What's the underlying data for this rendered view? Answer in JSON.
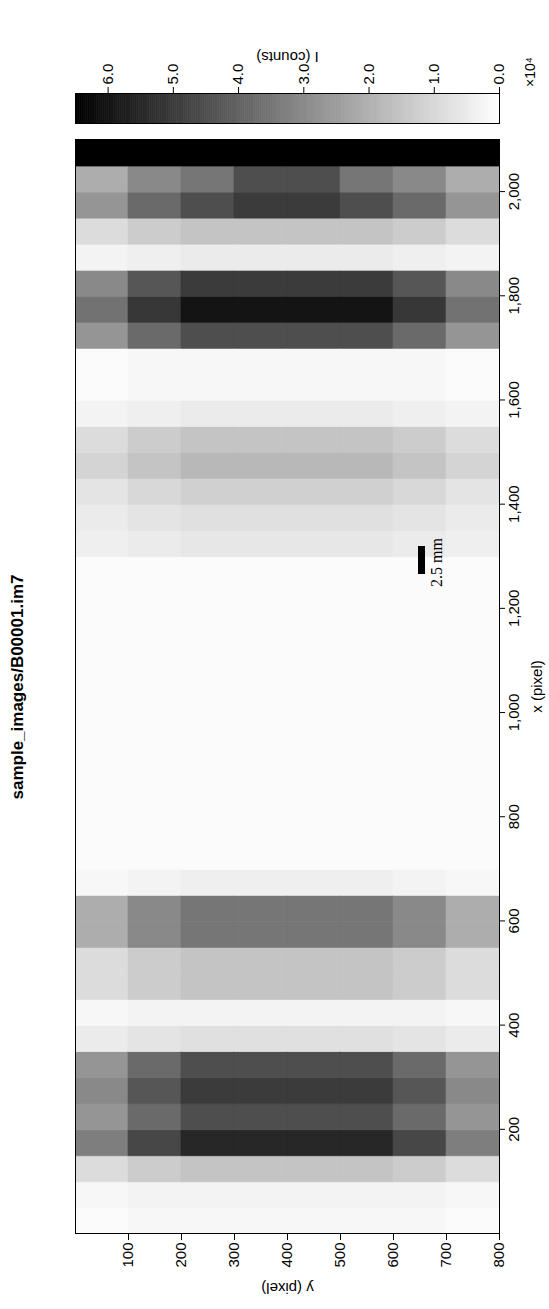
{
  "chart_data": {
    "type": "heatmap",
    "title": "sample_images/B00001.im7",
    "x_label": "x (pixel)",
    "y_label": "y (pixel)",
    "xlim": [
      0,
      2100
    ],
    "ylim": [
      0,
      800
    ],
    "xticks": [
      200,
      400,
      600,
      800,
      1000,
      1200,
      1400,
      1600,
      1800,
      2000
    ],
    "yticks": [
      100,
      200,
      300,
      400,
      500,
      600,
      700,
      800
    ],
    "x_edges": [
      0,
      50,
      100,
      150,
      200,
      250,
      300,
      350,
      400,
      450,
      500,
      550,
      600,
      650,
      700,
      750,
      800,
      850,
      900,
      950,
      1000,
      1050,
      1100,
      1150,
      1200,
      1250,
      1300,
      1350,
      1400,
      1450,
      1500,
      1550,
      1600,
      1650,
      1700,
      1750,
      1800,
      1850,
      1900,
      1950,
      2000,
      2050,
      2100
    ],
    "y_edges": [
      0,
      100,
      200,
      300,
      400,
      500,
      600,
      700,
      800
    ],
    "cells": [
      [
        0.1,
        0.2,
        0.9,
        3.3,
        2.7,
        3.0,
        2.7,
        0.5,
        0.2,
        0.9,
        0.9,
        2.1,
        2.1,
        0.2,
        0.1,
        0.1,
        0.1,
        0.1,
        0.1,
        0.1,
        0.1,
        0.1,
        0.1,
        0.1,
        0.1,
        0.1,
        0.4,
        0.5,
        0.7,
        1.1,
        0.9,
        0.3,
        0.1,
        0.1,
        2.7,
        3.6,
        3.0,
        0.3,
        0.9,
        2.7,
        2.1,
        6.5
      ],
      [
        0.2,
        0.3,
        1.3,
        4.7,
        3.8,
        4.3,
        3.8,
        0.7,
        0.3,
        1.3,
        1.3,
        3.0,
        3.0,
        0.3,
        0.1,
        0.1,
        0.1,
        0.1,
        0.1,
        0.1,
        0.1,
        0.1,
        0.1,
        0.1,
        0.1,
        0.1,
        0.5,
        0.7,
        1.0,
        1.5,
        1.3,
        0.4,
        0.2,
        0.2,
        3.8,
        5.1,
        4.3,
        0.4,
        1.3,
        3.8,
        3.0,
        6.5
      ],
      [
        0.2,
        0.3,
        1.5,
        5.5,
        4.5,
        5.0,
        4.5,
        0.8,
        0.3,
        1.5,
        1.5,
        3.5,
        3.5,
        0.4,
        0.1,
        0.1,
        0.1,
        0.1,
        0.1,
        0.1,
        0.1,
        0.1,
        0.1,
        0.1,
        0.1,
        0.1,
        0.6,
        0.8,
        1.2,
        1.8,
        1.5,
        0.5,
        0.2,
        0.2,
        4.5,
        6.0,
        5.0,
        0.5,
        1.5,
        4.5,
        3.5,
        6.5
      ],
      [
        0.2,
        0.3,
        1.5,
        5.5,
        4.5,
        5.0,
        4.5,
        0.8,
        0.3,
        1.5,
        1.5,
        3.5,
        3.5,
        0.4,
        0.1,
        0.1,
        0.1,
        0.1,
        0.1,
        0.1,
        0.1,
        0.1,
        0.1,
        0.1,
        0.1,
        0.1,
        0.6,
        0.8,
        1.2,
        1.8,
        1.5,
        0.5,
        0.2,
        0.2,
        4.5,
        6.0,
        5.0,
        0.5,
        1.5,
        5.0,
        4.5,
        6.5
      ],
      [
        0.2,
        0.3,
        1.5,
        5.5,
        4.5,
        5.0,
        4.5,
        0.8,
        0.3,
        1.5,
        1.5,
        3.5,
        3.5,
        0.4,
        0.1,
        0.1,
        0.1,
        0.1,
        0.1,
        0.1,
        0.1,
        0.1,
        0.1,
        0.1,
        0.1,
        0.1,
        0.6,
        0.8,
        1.2,
        1.8,
        1.5,
        0.5,
        0.2,
        0.2,
        4.5,
        6.0,
        5.0,
        0.5,
        1.5,
        5.0,
        4.5,
        6.5
      ],
      [
        0.2,
        0.3,
        1.5,
        5.5,
        4.5,
        5.0,
        4.5,
        0.8,
        0.3,
        1.5,
        1.5,
        3.5,
        3.5,
        0.4,
        0.1,
        0.1,
        0.1,
        0.1,
        0.1,
        0.1,
        0.1,
        0.1,
        0.1,
        0.1,
        0.1,
        0.1,
        0.6,
        0.8,
        1.2,
        1.8,
        1.5,
        0.5,
        0.2,
        0.2,
        4.5,
        6.0,
        5.0,
        0.5,
        1.5,
        4.5,
        3.5,
        6.5
      ],
      [
        0.2,
        0.3,
        1.3,
        4.7,
        3.8,
        4.3,
        3.8,
        0.7,
        0.3,
        1.3,
        1.3,
        3.0,
        3.0,
        0.3,
        0.1,
        0.1,
        0.1,
        0.1,
        0.1,
        0.1,
        0.1,
        0.1,
        0.1,
        0.1,
        0.1,
        0.1,
        0.5,
        0.7,
        1.0,
        1.5,
        1.3,
        0.4,
        0.2,
        0.2,
        3.8,
        5.1,
        4.3,
        0.4,
        1.3,
        3.8,
        3.0,
        6.5
      ],
      [
        0.1,
        0.2,
        0.9,
        3.3,
        2.7,
        3.0,
        2.7,
        0.5,
        0.2,
        0.9,
        0.9,
        2.1,
        2.1,
        0.2,
        0.1,
        0.1,
        0.1,
        0.1,
        0.1,
        0.1,
        0.1,
        0.1,
        0.1,
        0.1,
        0.1,
        0.1,
        0.4,
        0.5,
        0.7,
        1.1,
        0.9,
        0.3,
        0.1,
        0.1,
        2.7,
        3.6,
        3.0,
        0.3,
        0.9,
        2.7,
        2.1,
        6.5
      ]
    ],
    "colorbar": {
      "label": "I (counts)",
      "multiplier_label": "×10⁴",
      "range": [
        0,
        6.5
      ],
      "ticks": [
        0,
        1,
        2,
        3,
        4,
        5,
        6
      ],
      "colors": [
        "#ffffff",
        "#000000"
      ]
    },
    "annotations": [
      {
        "text": "2.5 mm"
      }
    ]
  }
}
